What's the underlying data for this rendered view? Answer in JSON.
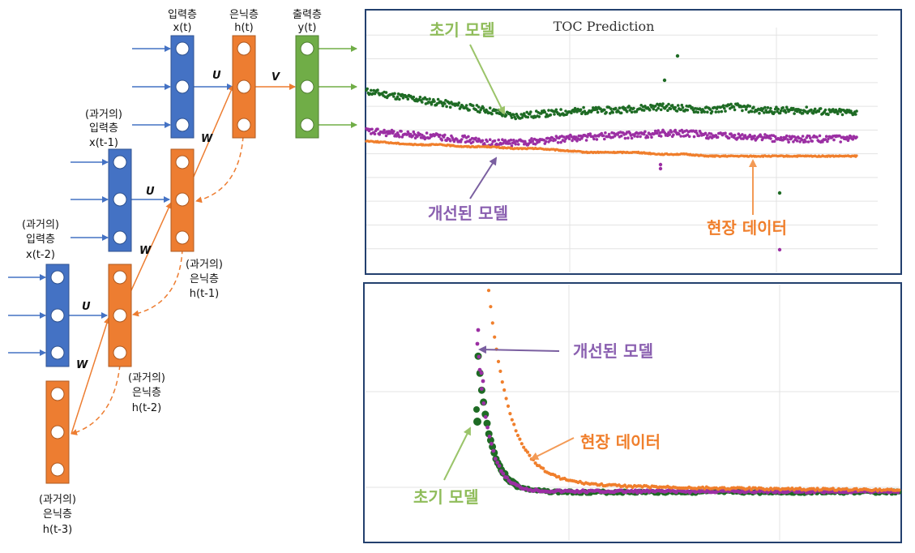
{
  "colors": {
    "input": "#4472c4",
    "hidden": "#ed7d31",
    "output": "#70ad47",
    "initial_model": "#1e6b24",
    "improved_model": "#9b2fa3",
    "field_data": "#f07f2c",
    "frame": "#23406e"
  },
  "rnn": {
    "input_label": "입력층",
    "input_var": "x(t)",
    "hidden_label": "은닉층",
    "hidden_var": "h(t)",
    "output_label": "출력층",
    "output_var": "y(t)",
    "past_prefix": "(과거의)",
    "past_input_label": "입력층",
    "past_input_var_1": "x(t-1)",
    "past_input_var_2": "x(t-2)",
    "past_hidden_label": "은닉층",
    "past_hidden_var_1": "h(t-1)",
    "past_hidden_var_2": "h(t-2)",
    "past_hidden_var_3": "h(t-3)",
    "weight_u": "U",
    "weight_v": "V",
    "weight_w": "W"
  },
  "top_chart": {
    "title": "TOC Prediction",
    "ann_initial": "초기 모델",
    "ann_improved": "개선된 모델",
    "ann_field": "현장 데이터"
  },
  "bottom_chart": {
    "ann_initial": "초기 모델",
    "ann_improved": "개선된 모델",
    "ann_field": "현장 데이터"
  },
  "chart_data": [
    {
      "type": "scatter",
      "title": "TOC Prediction",
      "grid": true,
      "x": [
        0,
        0.05,
        0.1,
        0.15,
        0.2,
        0.25,
        0.3,
        0.35,
        0.4,
        0.45,
        0.5,
        0.55,
        0.6,
        0.65,
        0.7,
        0.75,
        0.8,
        0.85,
        0.9,
        0.95,
        1.0
      ],
      "series": [
        {
          "name": "초기 모델",
          "values": [
            0.78,
            0.76,
            0.74,
            0.72,
            0.7,
            0.68,
            0.65,
            0.66,
            0.67,
            0.68,
            0.68,
            0.69,
            0.7,
            0.69,
            0.68,
            0.7,
            0.68,
            0.68,
            0.68,
            0.67,
            0.67
          ]
        },
        {
          "name": "개선된 모델",
          "values": [
            0.57,
            0.56,
            0.55,
            0.54,
            0.53,
            0.51,
            0.51,
            0.52,
            0.53,
            0.54,
            0.55,
            0.55,
            0.56,
            0.56,
            0.55,
            0.54,
            0.54,
            0.53,
            0.53,
            0.53,
            0.53
          ]
        },
        {
          "name": "현장 데이터",
          "values": [
            0.52,
            0.51,
            0.5,
            0.5,
            0.49,
            0.49,
            0.48,
            0.48,
            0.47,
            0.46,
            0.46,
            0.46,
            0.45,
            0.45,
            0.44,
            0.44,
            0.44,
            0.44,
            0.44,
            0.44,
            0.44
          ]
        }
      ]
    },
    {
      "type": "scatter",
      "grid": true,
      "x": [
        0,
        0.05,
        0.1,
        0.15,
        0.2,
        0.25,
        0.3,
        0.35,
        0.4,
        0.5,
        0.6,
        0.7,
        0.8,
        0.9,
        1.0
      ],
      "series": [
        {
          "name": "초기 모델",
          "values": [
            0,
            0,
            0,
            0.2,
            0.34,
            0.1,
            0.04,
            0.03,
            0.03,
            0.02,
            0.02,
            0.02,
            0.02,
            0.02,
            0.02
          ]
        },
        {
          "name": "개선된 모델",
          "values": [
            0,
            0,
            0,
            0.55,
            0.38,
            0.1,
            0.04,
            0.03,
            0.03,
            0.02,
            0.02,
            0.02,
            0.02,
            0.02,
            0.02
          ]
        },
        {
          "name": "현장 데이터",
          "values": [
            0,
            0,
            0,
            0,
            0.8,
            0.3,
            0.1,
            0.07,
            0.06,
            0.05,
            0.04,
            0.03,
            0.03,
            0.02,
            0.02
          ]
        }
      ]
    }
  ]
}
